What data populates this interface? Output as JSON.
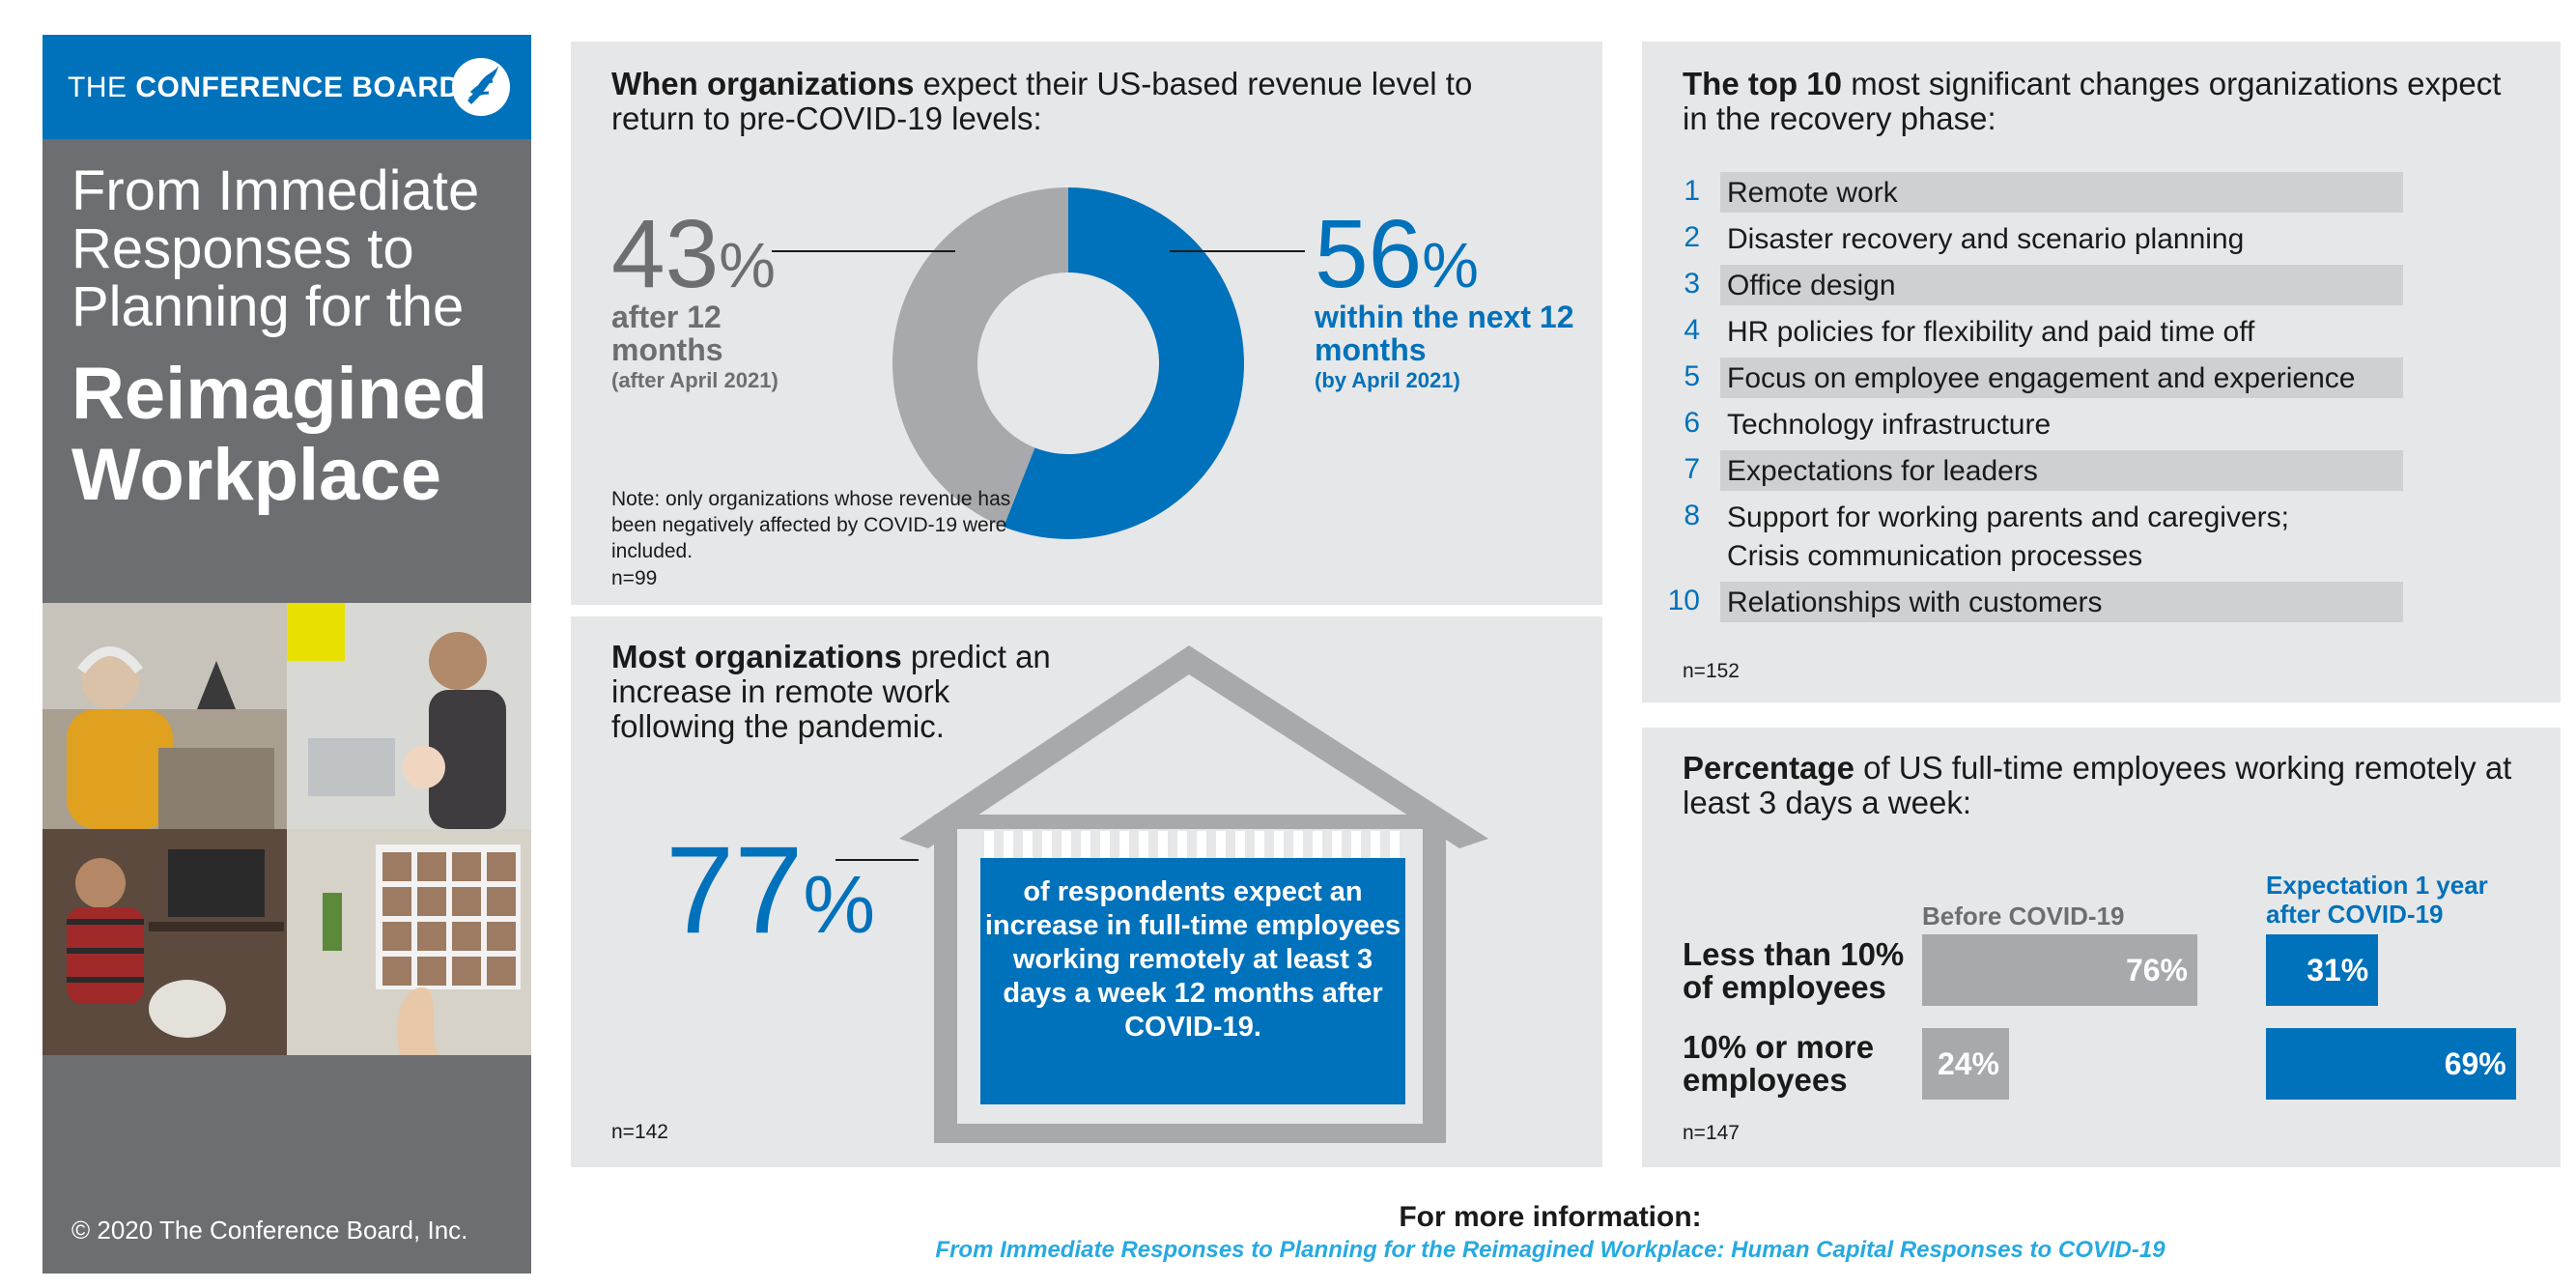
{
  "colors": {
    "blue": "#0071bb",
    "light_blue_link": "#27a9e1",
    "gray_dark": "#6d6e71",
    "gray_mid": "#a7a9ac",
    "panel_bg": "#e6e7e8",
    "row_shade": "#cfd0d2"
  },
  "sidebar": {
    "brand_the": "THE ",
    "brand_name": "CONFERENCE BOARD",
    "logo_icon": "torch-logo-icon",
    "title_top": "From Immediate Responses to Planning for the",
    "title_bold": "Reimagined Workplace",
    "copyright": "© 2020 The Conference Board, Inc."
  },
  "revenue": {
    "title_bold": "When organizations",
    "title_rest": " expect their US-based revenue level to return to pre-COVID-19 levels:",
    "left_value": "43",
    "left_label": "after 12 months",
    "left_sub": "(after April 2021)",
    "right_value": "56",
    "right_label": "within the next 12 months",
    "right_sub": "(by April 2021)",
    "pct_sign": "%",
    "note": "Note: only organizations whose revenue has been negatively affected by COVID-19 were included.",
    "n": "n=99"
  },
  "remote": {
    "title_bold": "Most organizations",
    "title_rest": " predict an increase in remote work following the pandemic.",
    "value": "77",
    "pct_sign": "%",
    "box_text": "of respondents expect an increase in full-time employees working remotely at least 3 days a week 12 months after COVID-19.",
    "n": "n=142"
  },
  "top10": {
    "title_bold": "The top 10",
    "title_rest": " most significant changes organizations expect in the recovery phase:",
    "items": [
      {
        "num": "1",
        "label": "Remote work"
      },
      {
        "num": "2",
        "label": "Disaster recovery and scenario planning"
      },
      {
        "num": "3",
        "label": "Office design"
      },
      {
        "num": "4",
        "label": "HR policies for flexibility and paid time off"
      },
      {
        "num": "5",
        "label": "Focus on employee engagement and experience"
      },
      {
        "num": "6",
        "label": "Technology infrastructure"
      },
      {
        "num": "7",
        "label": "Expectations for leaders"
      },
      {
        "num": "8",
        "label": "Support for working parents and caregivers;"
      },
      {
        "num": "",
        "label": "Crisis communication processes"
      },
      {
        "num": "10",
        "label": "Relationships with customers"
      }
    ],
    "n": "n=152"
  },
  "pct": {
    "title_bold": "Percentage",
    "title_rest": " of US full-time employees working remotely at least 3 days a week:",
    "col_before": "Before COVID-19",
    "col_after": "Expectation 1 year after COVID-19",
    "rows": [
      {
        "label": "Less than 10% of employees",
        "before": 76,
        "before_label": "76%",
        "after": 31,
        "after_label": "31%"
      },
      {
        "label": "10% or more employees",
        "before": 24,
        "before_label": "24%",
        "after": 69,
        "after_label": "69%"
      }
    ],
    "n": "n=147"
  },
  "footer": {
    "heading": "For more information:",
    "link": "From Immediate Responses to Planning for the Reimagined Workplace: Human Capital Responses to COVID-19"
  },
  "chart_data": [
    {
      "type": "pie",
      "categories": [
        "after 12 months",
        "within the next 12 months"
      ],
      "values": [
        43,
        56
      ],
      "title": "When organizations expect their US-based revenue level to return to pre-COVID-19 levels:"
    },
    {
      "type": "bar",
      "categories": [
        "Less than 10% of employees",
        "10% or more employees"
      ],
      "series": [
        {
          "name": "Before COVID-19",
          "values": [
            76,
            24
          ]
        },
        {
          "name": "Expectation 1 year after COVID-19",
          "values": [
            31,
            69
          ]
        }
      ],
      "title": "Percentage of US full-time employees working remotely at least 3 days a week:"
    }
  ]
}
